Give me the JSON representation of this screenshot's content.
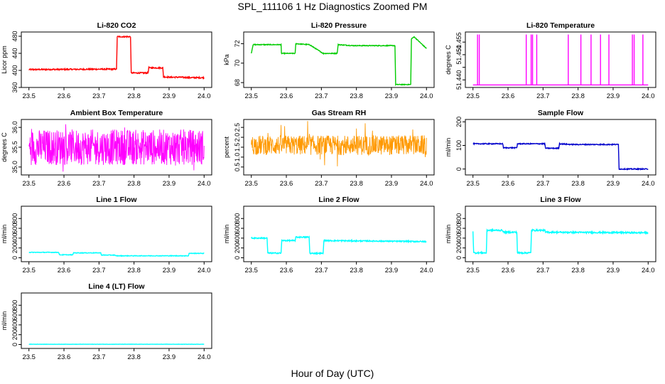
{
  "page": {
    "title": "SPL_111106  1 Hz Diagnostics Zoomed PM",
    "xlabel": "Hour of Day (UTC)"
  },
  "chart_data": [
    {
      "type": "line",
      "title": "Li-820 CO2",
      "ylabel": "Licor ppm",
      "color": "#ff0000",
      "xlim": [
        23.5,
        24.0
      ],
      "ylim": [
        360,
        490
      ],
      "xticks": [
        "23.5",
        "23.6",
        "23.7",
        "23.8",
        "23.9",
        "24.0"
      ],
      "yticks": [
        360,
        400,
        440,
        480
      ],
      "ytick_labels": [
        "360",
        "400",
        "440",
        "480"
      ],
      "series": [
        {
          "x": [
            23.5,
            23.75,
            23.752,
            23.79,
            23.792,
            23.84,
            23.842,
            23.882,
            23.884,
            23.9,
            23.93,
            23.96,
            24.0
          ],
          "y": [
            402,
            403,
            479,
            479,
            394,
            394,
            406,
            406,
            385,
            384,
            384,
            383,
            383
          ]
        }
      ],
      "noise": 1.5
    },
    {
      "type": "line",
      "title": "Li-820 Pressure",
      "ylabel": "kPa",
      "color": "#00cc00",
      "xlim": [
        23.5,
        24.0
      ],
      "ylim": [
        67.5,
        73.2
      ],
      "xticks": [
        "23.5",
        "23.6",
        "23.7",
        "23.8",
        "23.9",
        "24.0"
      ],
      "yticks": [
        68,
        70,
        72
      ],
      "ytick_labels": [
        "68",
        "70",
        "72"
      ],
      "series": [
        {
          "x": [
            23.5,
            23.505,
            23.585,
            23.586,
            23.625,
            23.627,
            23.665,
            23.666,
            23.705,
            23.706,
            23.745,
            23.748,
            23.79,
            23.8,
            23.91,
            23.912,
            23.955,
            23.957,
            23.965,
            24.0
          ],
          "y": [
            71.0,
            71.9,
            71.9,
            71.0,
            71.0,
            72.0,
            71.9,
            71.9,
            71.0,
            71.0,
            71.0,
            71.9,
            71.8,
            71.8,
            71.8,
            67.8,
            67.8,
            72.5,
            72.7,
            71.5
          ]
        }
      ],
      "noise": 0.04
    },
    {
      "type": "line",
      "title": "Li-820 Temperature",
      "ylabel": "degrees C",
      "color": "#ff00ff",
      "xlim": [
        23.5,
        24.0
      ],
      "ylim": [
        51.437,
        51.459
      ],
      "xticks": [
        "23.5",
        "23.6",
        "23.7",
        "23.8",
        "23.9",
        "24.0"
      ],
      "yticks": [
        51.44,
        51.445,
        51.45,
        51.455
      ],
      "ytick_labels": [
        "51.440",
        "",
        "51.450",
        "51.455"
      ],
      "baseline": 51.438,
      "spike_value": 51.458,
      "spike_x": [
        23.513,
        23.518,
        23.652,
        23.666,
        23.67,
        23.682,
        23.772,
        23.808,
        23.837,
        23.864,
        23.888,
        23.955,
        23.96,
        23.985
      ]
    },
    {
      "type": "line",
      "title": "Ambient Box Temperature",
      "ylabel": "degrees C",
      "color": "#ff00ff",
      "xlim": [
        23.5,
        24.0
      ],
      "ylim": [
        34.8,
        36.2
      ],
      "xticks": [
        "23.5",
        "23.6",
        "23.7",
        "23.8",
        "23.9",
        "24.0"
      ],
      "yticks": [
        35.0,
        35.5,
        36.0
      ],
      "ytick_labels": [
        "35.0",
        "35.5",
        "36.0"
      ],
      "band": [
        35.05,
        35.95
      ],
      "mean": 35.5
    },
    {
      "type": "line",
      "title": "Gas Stream RH",
      "ylabel": "percent",
      "color": "#ff9900",
      "xlim": [
        23.5,
        24.0
      ],
      "ylim": [
        0.1,
        2.9
      ],
      "xticks": [
        "23.5",
        "23.6",
        "23.7",
        "23.8",
        "23.9",
        "24.0"
      ],
      "yticks": [
        0.5,
        1.0,
        1.5,
        2.0,
        2.5
      ],
      "ytick_labels": [
        "0.5",
        "1.0",
        "1.5",
        "2.0",
        "2.5"
      ],
      "band": [
        1.1,
        2.1
      ],
      "mean": 1.6
    },
    {
      "type": "line",
      "title": "Sample Flow",
      "ylabel": "ml/min",
      "color": "#0000cc",
      "xlim": [
        23.5,
        24.0
      ],
      "ylim": [
        -25,
        210
      ],
      "xticks": [
        "23.5",
        "23.6",
        "23.7",
        "23.8",
        "23.9",
        "24.0"
      ],
      "yticks": [
        0,
        100,
        200
      ],
      "ytick_labels": [
        "0",
        "100",
        "200"
      ],
      "series": [
        {
          "x": [
            23.5,
            23.585,
            23.587,
            23.625,
            23.627,
            23.705,
            23.707,
            23.745,
            23.747,
            23.78,
            23.915,
            23.917,
            24.0
          ],
          "y": [
            107,
            107,
            90,
            90,
            107,
            107,
            88,
            88,
            107,
            104,
            104,
            0,
            0
          ]
        }
      ],
      "noise": 2
    },
    {
      "type": "line",
      "title": "Line 1 Flow",
      "ylabel": "ml/min",
      "color": "#00ffff",
      "xlim": [
        23.5,
        24.0
      ],
      "ylim": [
        -80,
        1050
      ],
      "xticks": [
        "23.5",
        "23.6",
        "23.7",
        "23.8",
        "23.9",
        "24.0"
      ],
      "yticks": [
        0,
        200,
        400,
        600,
        800
      ],
      "ytick_labels": [
        "0",
        "200",
        "400",
        "600",
        "800"
      ],
      "series": [
        {
          "x": [
            23.5,
            23.585,
            23.587,
            23.625,
            23.627,
            23.705,
            23.707,
            23.745,
            23.747,
            23.955,
            23.957,
            24.0
          ],
          "y": [
            110,
            110,
            60,
            60,
            100,
            100,
            55,
            55,
            40,
            40,
            90,
            90
          ]
        }
      ],
      "noise": 6
    },
    {
      "type": "line",
      "title": "Line 2 Flow",
      "ylabel": "ml/min",
      "color": "#00ffff",
      "xlim": [
        23.5,
        24.0
      ],
      "ylim": [
        -80,
        1050
      ],
      "xticks": [
        "23.5",
        "23.6",
        "23.7",
        "23.8",
        "23.9",
        "24.0"
      ],
      "yticks": [
        0,
        200,
        400,
        600,
        800
      ],
      "ytick_labels": [
        "0",
        "200",
        "400",
        "600",
        "800"
      ],
      "series": [
        {
          "x": [
            23.5,
            23.545,
            23.547,
            23.585,
            23.587,
            23.625,
            23.627,
            23.665,
            23.667,
            23.705,
            23.707,
            24.0
          ],
          "y": [
            400,
            400,
            95,
            95,
            350,
            350,
            420,
            420,
            90,
            90,
            350,
            330
          ]
        }
      ],
      "noise": 12
    },
    {
      "type": "line",
      "title": "Line 3 Flow",
      "ylabel": "ml/min",
      "color": "#00ffff",
      "xlim": [
        23.5,
        24.0
      ],
      "ylim": [
        -80,
        1050
      ],
      "xticks": [
        "23.5",
        "23.6",
        "23.7",
        "23.8",
        "23.9",
        "24.0"
      ],
      "yticks": [
        0,
        200,
        400,
        600,
        800
      ],
      "ytick_labels": [
        "0",
        "200",
        "400",
        "600",
        "800"
      ],
      "series": [
        {
          "x": [
            23.5,
            23.502,
            23.505,
            23.538,
            23.54,
            23.585,
            23.587,
            23.625,
            23.627,
            23.665,
            23.667,
            23.705,
            23.707,
            24.0
          ],
          "y": [
            540,
            100,
            100,
            100,
            560,
            560,
            520,
            520,
            100,
            100,
            560,
            560,
            520,
            510
          ]
        }
      ],
      "noise": 15
    },
    {
      "type": "line",
      "title": "Line 4 (LT) Flow",
      "ylabel": "ml/min",
      "color": "#00ffff",
      "xlim": [
        23.5,
        24.0
      ],
      "ylim": [
        -80,
        1050
      ],
      "xticks": [
        "23.5",
        "23.6",
        "23.7",
        "23.8",
        "23.9",
        "24.0"
      ],
      "yticks": [
        0,
        200,
        400,
        600,
        800
      ],
      "ytick_labels": [
        "0",
        "200",
        "400",
        "600",
        "800"
      ],
      "series": [
        {
          "x": [
            23.5,
            24.0
          ],
          "y": [
            5,
            5
          ]
        }
      ],
      "noise": 2
    }
  ]
}
